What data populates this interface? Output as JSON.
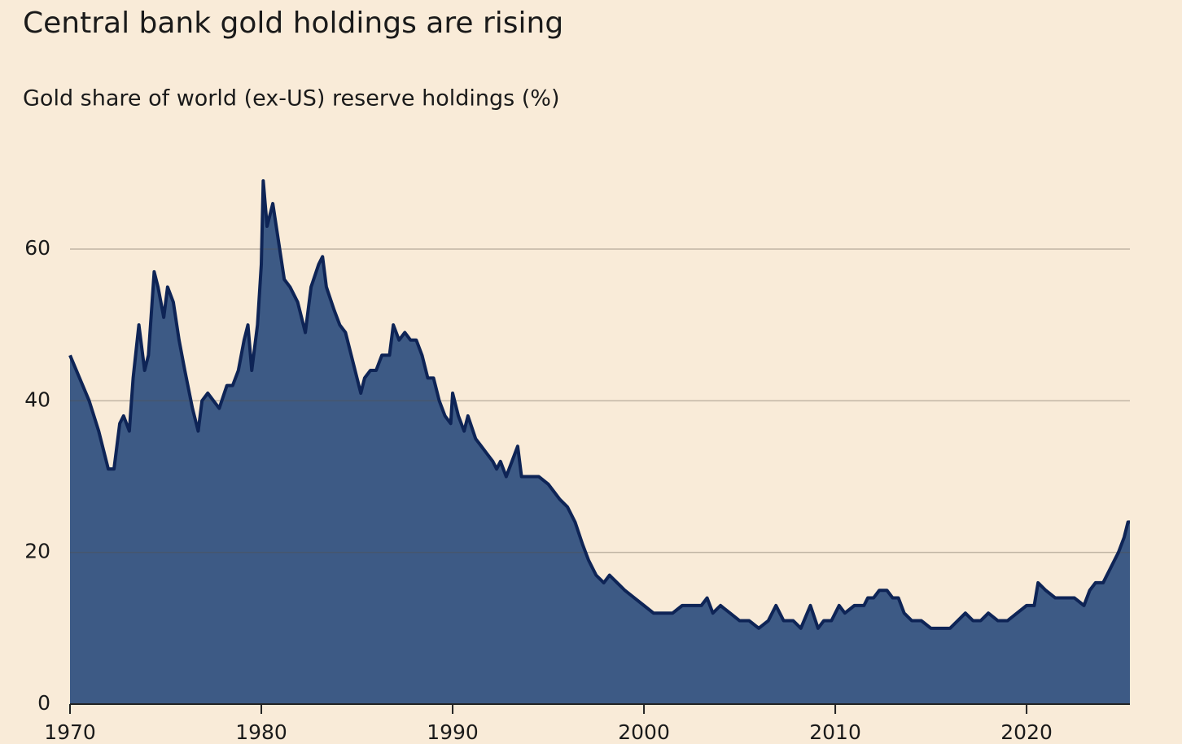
{
  "chart_data": {
    "type": "area",
    "title": "Central bank gold holdings are rising",
    "subtitle": "Gold share of world (ex-US) reserve holdings (%)",
    "x": [
      1970.0,
      1970.5,
      1971.0,
      1971.5,
      1971.7,
      1972.0,
      1972.3,
      1972.6,
      1972.8,
      1973.1,
      1973.3,
      1973.6,
      1973.9,
      1974.1,
      1974.4,
      1974.6,
      1974.9,
      1975.1,
      1975.4,
      1975.7,
      1976.0,
      1976.4,
      1976.7,
      1976.9,
      1977.2,
      1977.5,
      1977.8,
      1978.2,
      1978.5,
      1978.8,
      1979.1,
      1979.3,
      1979.5,
      1979.8,
      1980.0,
      1980.1,
      1980.3,
      1980.6,
      1980.9,
      1981.2,
      1981.5,
      1981.9,
      1982.3,
      1982.6,
      1983.0,
      1983.2,
      1983.4,
      1983.8,
      1984.1,
      1984.4,
      1984.7,
      1985.0,
      1985.2,
      1985.4,
      1985.7,
      1986.0,
      1986.3,
      1986.7,
      1986.9,
      1987.2,
      1987.5,
      1987.8,
      1988.1,
      1988.4,
      1988.7,
      1989.0,
      1989.3,
      1989.6,
      1989.9,
      1990.0,
      1990.3,
      1990.6,
      1990.8,
      1991.2,
      1991.5,
      1991.8,
      1992.1,
      1992.3,
      1992.5,
      1992.8,
      1993.1,
      1993.4,
      1993.6,
      1994.0,
      1994.5,
      1995.0,
      1995.3,
      1995.6,
      1996.0,
      1996.4,
      1996.8,
      1997.1,
      1997.5,
      1997.9,
      1998.2,
      1998.6,
      1999.0,
      1999.5,
      2000.0,
      2000.5,
      2001.0,
      2001.5,
      2002.0,
      2002.5,
      2003.0,
      2003.3,
      2003.6,
      2004.0,
      2004.5,
      2005.0,
      2005.5,
      2006.0,
      2006.5,
      2006.9,
      2007.3,
      2007.8,
      2008.2,
      2008.7,
      2009.1,
      2009.4,
      2009.8,
      2010.2,
      2010.5,
      2011.0,
      2011.5,
      2011.7,
      2012.0,
      2012.3,
      2012.7,
      2013.0,
      2013.3,
      2013.6,
      2014.0,
      2014.5,
      2015.0,
      2015.5,
      2016.0,
      2016.4,
      2016.8,
      2017.2,
      2017.6,
      2018.0,
      2018.5,
      2019.0,
      2019.5,
      2020.0,
      2020.4,
      2020.6,
      2021.0,
      2021.5,
      2022.0,
      2022.5,
      2023.0,
      2023.3,
      2023.6,
      2024.0,
      2024.4,
      2024.8,
      2025.1,
      2025.3,
      2025.4
    ],
    "values": [
      46,
      43,
      40,
      36,
      34,
      31,
      31,
      37,
      38,
      36,
      43,
      50,
      44,
      46,
      57,
      55,
      51,
      55,
      53,
      48,
      44,
      39,
      36,
      40,
      41,
      40,
      39,
      42,
      42,
      44,
      48,
      50,
      44,
      50,
      58,
      69,
      63,
      66,
      61,
      56,
      55,
      53,
      49,
      55,
      58,
      59,
      55,
      52,
      50,
      49,
      46,
      43,
      41,
      43,
      44,
      44,
      46,
      46,
      50,
      48,
      49,
      48,
      48,
      46,
      43,
      43,
      40,
      38,
      37,
      41,
      38,
      36,
      38,
      35,
      34,
      33,
      32,
      31,
      32,
      30,
      32,
      34,
      30,
      30,
      30,
      29,
      28,
      27,
      26,
      24,
      21,
      19,
      17,
      16,
      17,
      16,
      15,
      14,
      13,
      12,
      12,
      12,
      13,
      13,
      13,
      14,
      12,
      13,
      12,
      11,
      11,
      10,
      11,
      13,
      11,
      11,
      10,
      13,
      10,
      11,
      11,
      13,
      12,
      13,
      13,
      14,
      14,
      15,
      15,
      14,
      14,
      12,
      11,
      11,
      10,
      10,
      10,
      11,
      12,
      11,
      11,
      12,
      11,
      11,
      12,
      13,
      13,
      16,
      15,
      14,
      14,
      14,
      13,
      15,
      16,
      16,
      18,
      20,
      22,
      24,
      24
    ],
    "fill_color": "#3d5a85",
    "line_color": "#0e2456",
    "xlim": [
      1970,
      2025.4
    ],
    "xticks": [
      1970,
      1980,
      1990,
      2000,
      2010,
      2020
    ],
    "ylim": [
      0,
      69
    ],
    "yticks": [
      0,
      20,
      40,
      60
    ],
    "grid": true
  }
}
